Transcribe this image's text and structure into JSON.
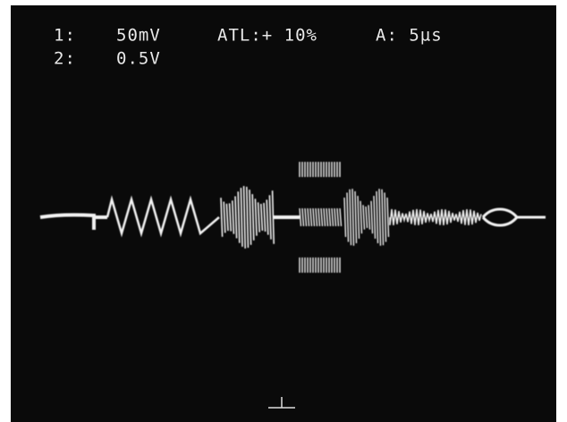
{
  "screen": {
    "line1": {
      "channel": "1:",
      "scale": "50mV",
      "trigger": "ATL:+ 10%",
      "timebase": "A: 5µs"
    },
    "line2": {
      "channel": "2:",
      "scale": "0.5V"
    }
  }
}
